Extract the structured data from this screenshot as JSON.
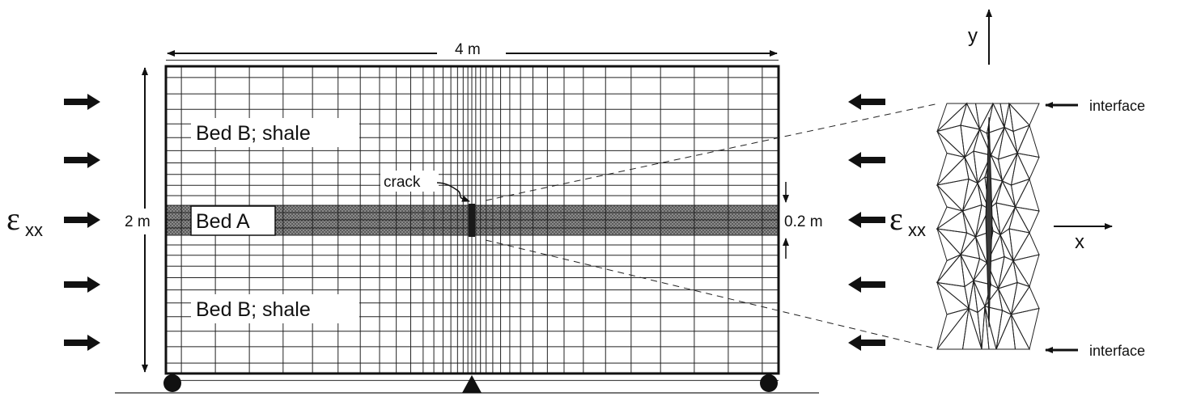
{
  "figure": {
    "width_label": "4 m",
    "height_label": "2 m",
    "bed_thickness_label": "0.2 m",
    "bed_b_top_label": "Bed B; shale",
    "bed_a_label": "Bed A",
    "bed_b_bottom_label": "Bed B; shale",
    "crack_label": "crack",
    "strain_left": {
      "symbol": "ε",
      "subscript": "xx"
    },
    "strain_right": {
      "symbol": "ε",
      "subscript": "xx"
    },
    "detail": {
      "interface_top_label": "interface",
      "interface_bottom_label": "interface",
      "axis_y_label": "y",
      "axis_x_label": "x"
    },
    "colors": {
      "ink": "#111111",
      "grid": "#222222",
      "bed_fill": "#6a6a6a",
      "crack_fill": "#3a3a3a"
    }
  }
}
